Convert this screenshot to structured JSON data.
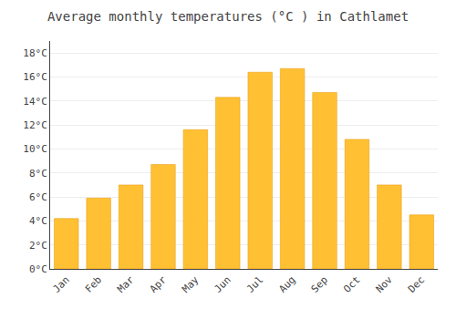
{
  "chart_data": {
    "type": "bar",
    "title": "Average monthly temperatures (°C ) in Cathlamet",
    "categories": [
      "Jan",
      "Feb",
      "Mar",
      "Apr",
      "May",
      "Jun",
      "Jul",
      "Aug",
      "Sep",
      "Oct",
      "Nov",
      "Dec"
    ],
    "values": [
      4.2,
      5.9,
      7.0,
      8.7,
      11.6,
      14.3,
      16.4,
      16.7,
      14.7,
      10.8,
      7.0,
      4.5
    ],
    "color": "#FFC133",
    "ylim": [
      0,
      19
    ],
    "yticks": [
      {
        "value": 0,
        "label": "0°C"
      },
      {
        "value": 2,
        "label": "2°C"
      },
      {
        "value": 4,
        "label": "4°C"
      },
      {
        "value": 6,
        "label": "6°C"
      },
      {
        "value": 8,
        "label": "8°C"
      },
      {
        "value": 10,
        "label": "10°C"
      },
      {
        "value": 12,
        "label": "12°C"
      },
      {
        "value": 14,
        "label": "14°C"
      },
      {
        "value": 16,
        "label": "16°C"
      },
      {
        "value": 18,
        "label": "18°C"
      }
    ],
    "grid": true
  }
}
